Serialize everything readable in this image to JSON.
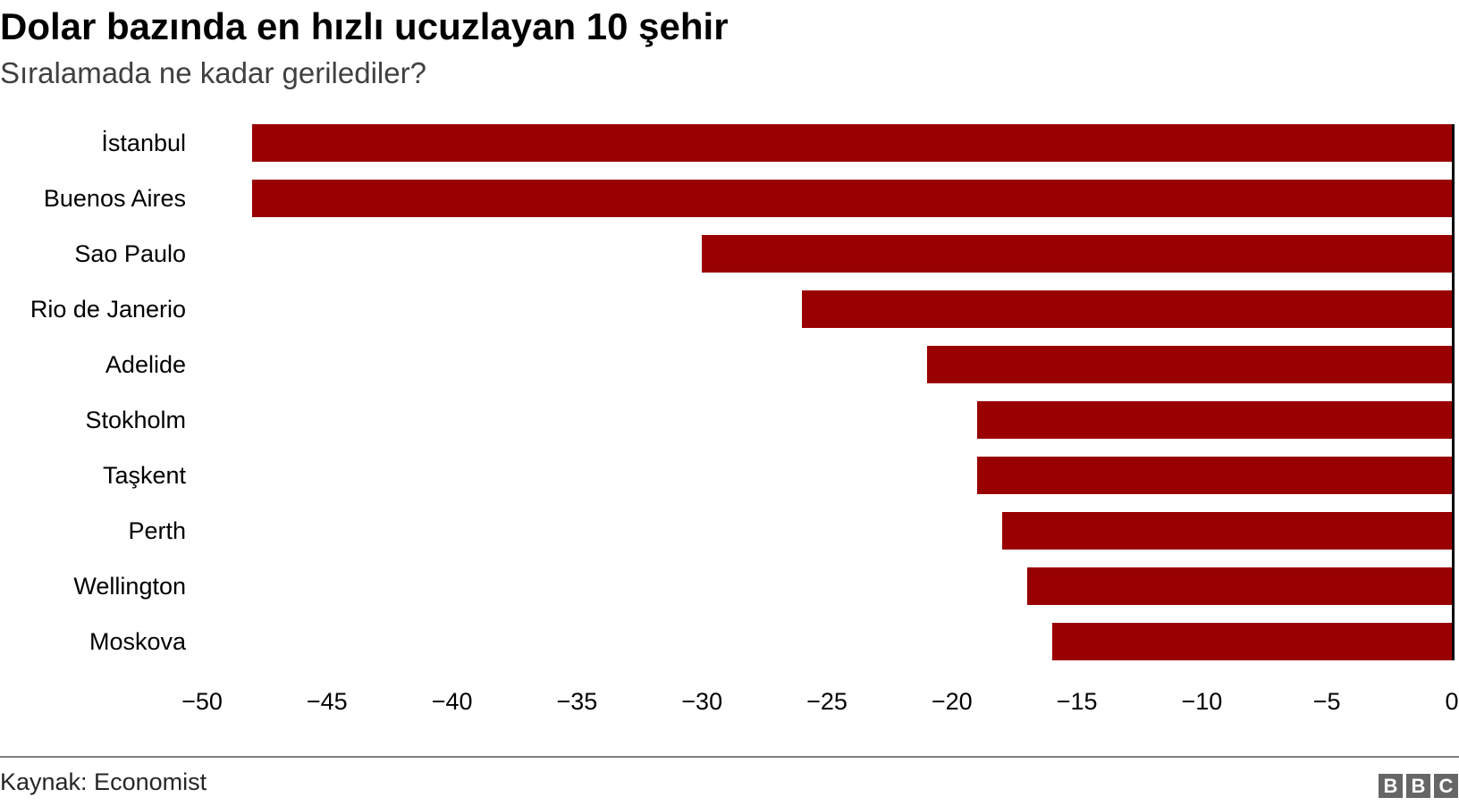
{
  "header": {
    "title": "Dolar bazında en hızlı ucuzlayan 10 şehir",
    "subtitle": "Sıralamada ne kadar gerilediler?"
  },
  "footer": {
    "source": "Kaynak: Economist",
    "logo_letters": [
      "B",
      "B",
      "C"
    ]
  },
  "colors": {
    "bar": "#990000",
    "zero_line": "#000000",
    "footer_rule": "#808080",
    "logo_bg": "#666666"
  },
  "chart_data": {
    "type": "bar",
    "orientation": "horizontal",
    "title": "Dolar bazında en hızlı ucuzlayan 10 şehir",
    "subtitle": "Sıralamada ne kadar gerilediler?",
    "xlabel": "",
    "ylabel": "",
    "categories": [
      "İstanbul",
      "Buenos Aires",
      "Sao Paulo",
      "Rio de Janerio",
      "Adelide",
      "Stokholm",
      "Taşkent",
      "Perth",
      "Wellington",
      "Moskova"
    ],
    "values": [
      -48,
      -48,
      -30,
      -26,
      -21,
      -19,
      -19,
      -18,
      -17,
      -16
    ],
    "xlim": [
      -50,
      0
    ],
    "x_ticks": [
      -50,
      -45,
      -40,
      -35,
      -30,
      -25,
      -20,
      -15,
      -10,
      -5,
      0
    ],
    "x_tick_labels": [
      "−50",
      "−45",
      "−40",
      "−35",
      "−30",
      "−25",
      "−20",
      "−15",
      "−10",
      "−5",
      "0"
    ],
    "grid": false,
    "legend": null,
    "source": "Kaynak: Economist"
  }
}
